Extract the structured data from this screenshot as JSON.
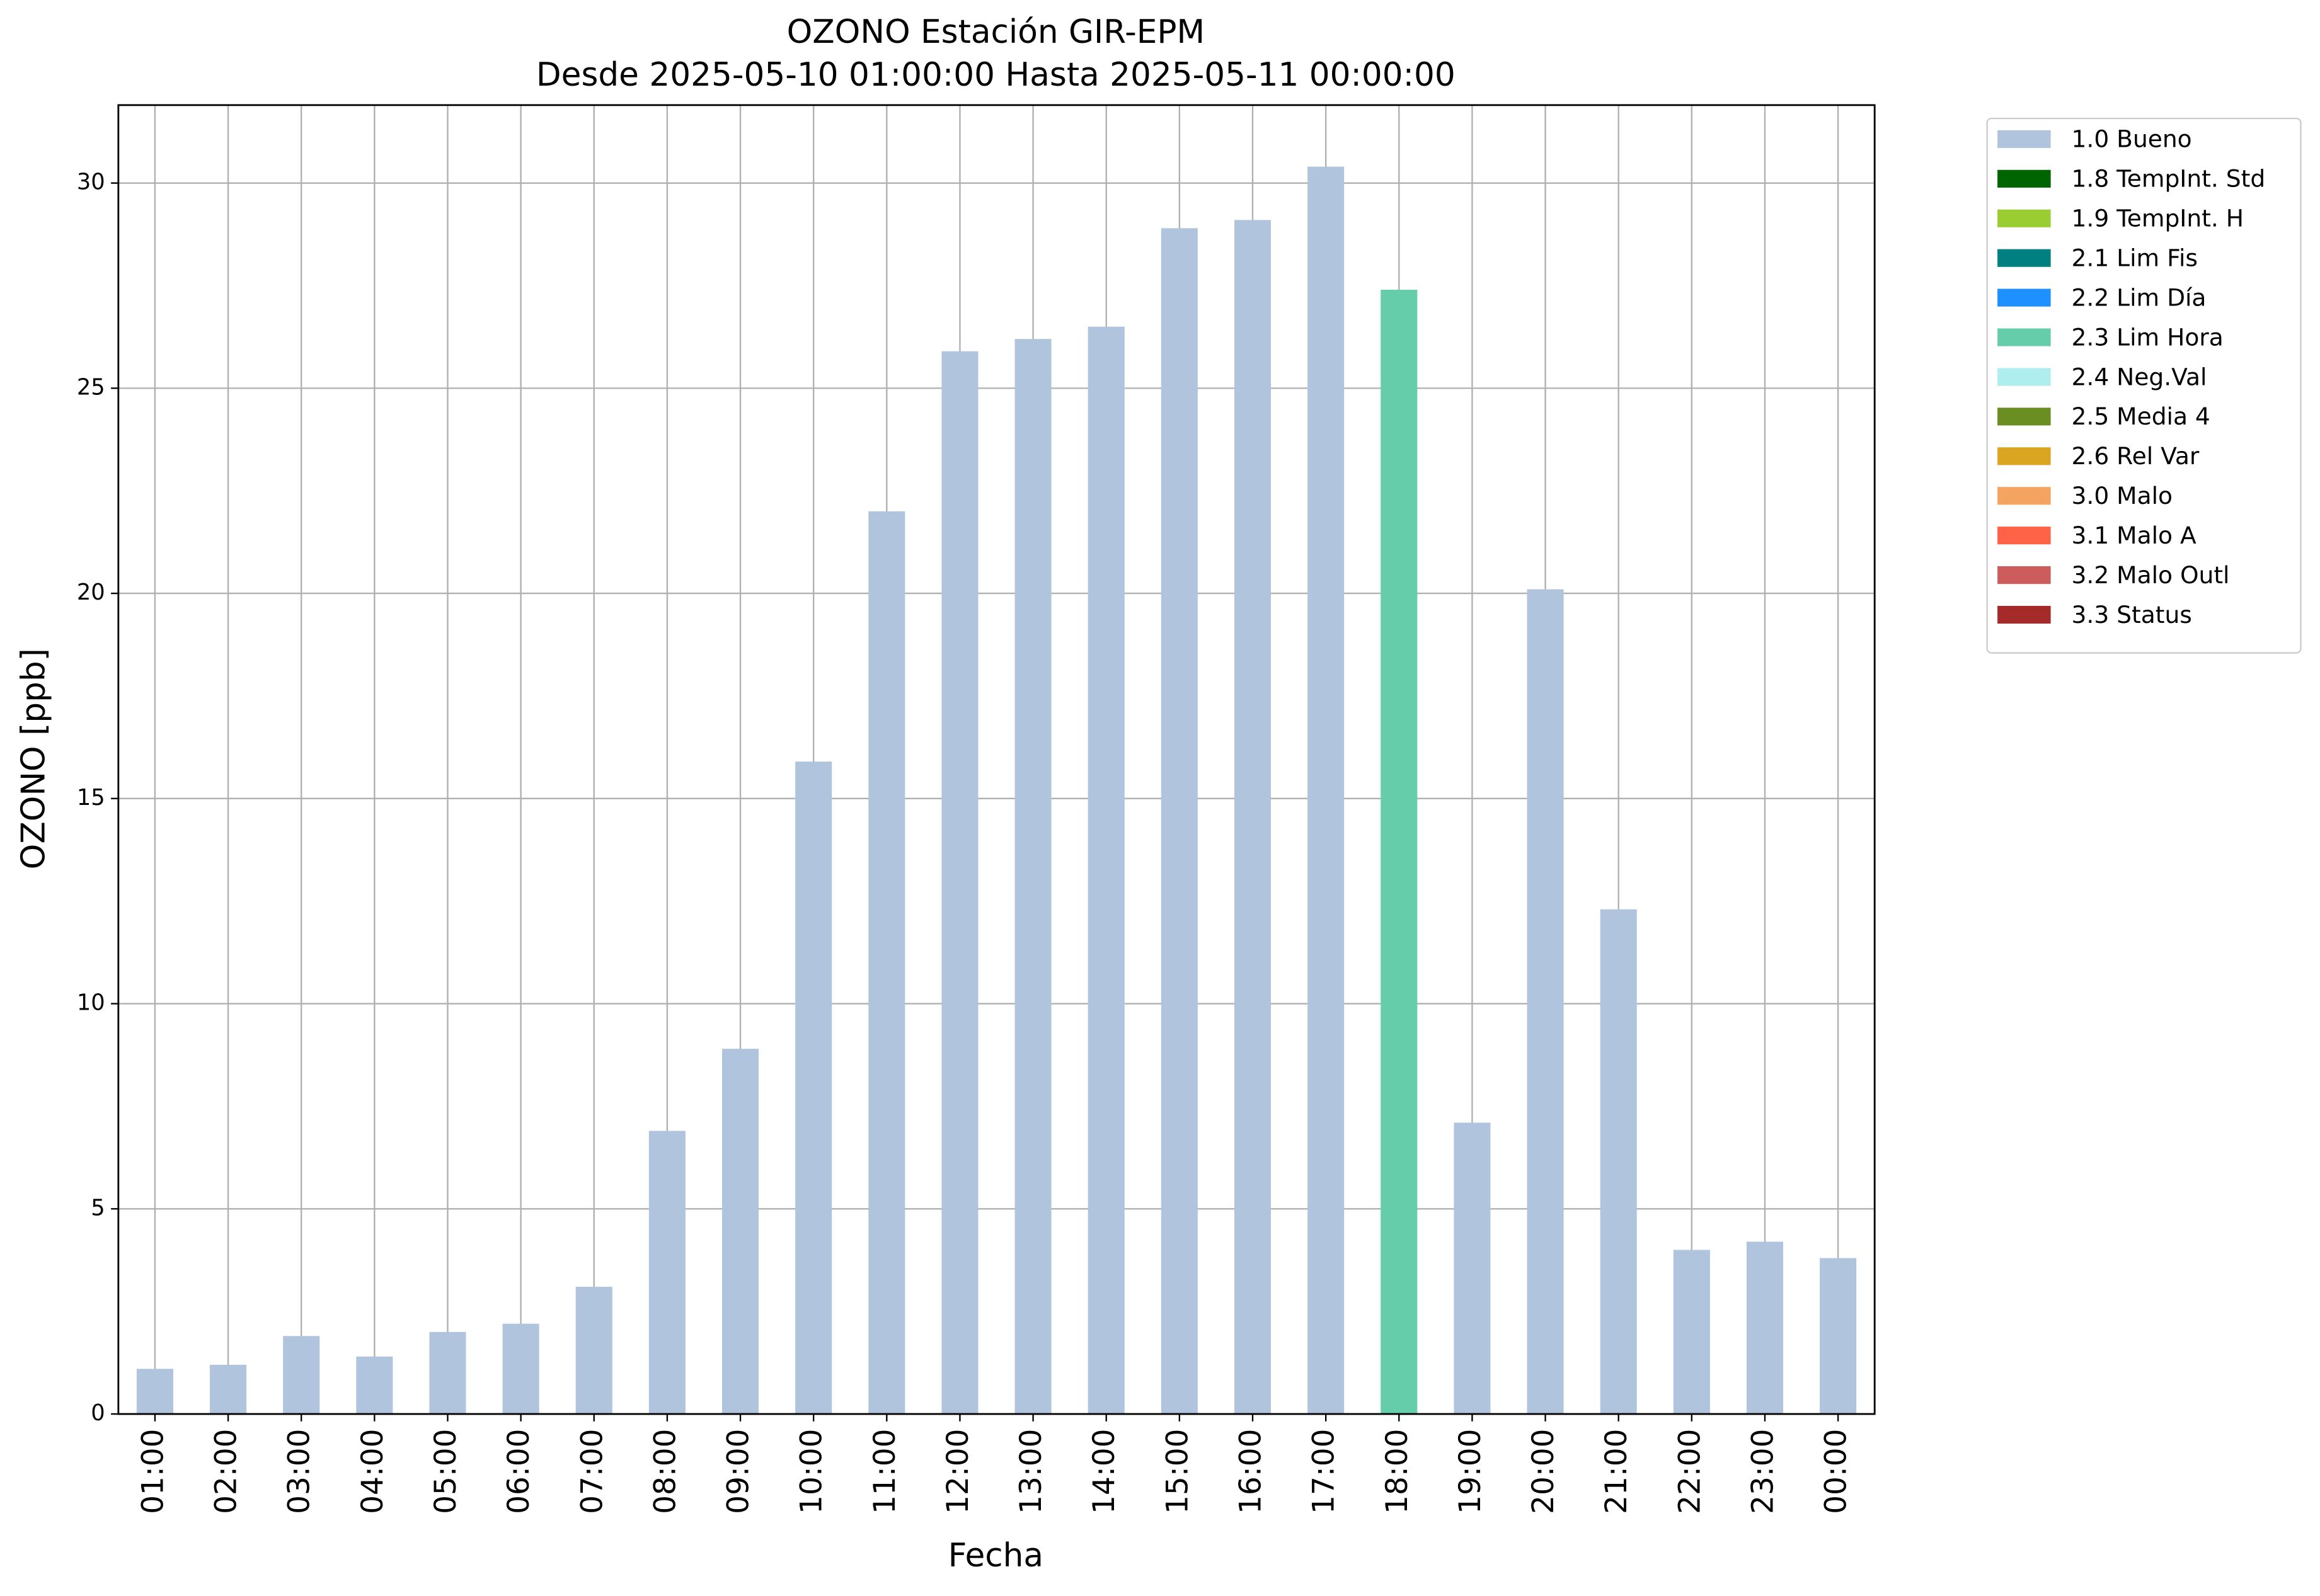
{
  "chart_data": {
    "type": "bar",
    "stacked": true,
    "title": "OZONO Estación GIR-EPM",
    "subtitle": "Desde 2025-05-10 01:00:00 Hasta 2025-05-11 00:00:00",
    "x_label": "Fecha",
    "y_label": "OZONO [ppb]",
    "categories": [
      "01:00",
      "02:00",
      "03:00",
      "04:00",
      "05:00",
      "06:00",
      "07:00",
      "08:00",
      "09:00",
      "10:00",
      "11:00",
      "12:00",
      "13:00",
      "14:00",
      "15:00",
      "16:00",
      "17:00",
      "18:00",
      "19:00",
      "20:00",
      "21:00",
      "22:00",
      "23:00",
      "00:00"
    ],
    "ylim": [
      0,
      31.9
    ],
    "yticks": [
      0,
      5,
      10,
      15,
      20,
      25,
      30
    ],
    "grid": true,
    "legend_position": "outside-right",
    "series": [
      {
        "name": "1.0 Bueno",
        "color": "#b0c4de",
        "values": [
          1.1,
          1.2,
          1.9,
          1.4,
          2.0,
          2.2,
          3.1,
          6.9,
          8.9,
          15.9,
          22.0,
          25.9,
          26.2,
          26.5,
          28.9,
          29.1,
          30.4,
          null,
          7.1,
          20.1,
          12.3,
          4.0,
          4.2,
          3.8
        ]
      },
      {
        "name": "1.8 TempInt. Std",
        "color": "#006400",
        "values": [
          null,
          null,
          null,
          null,
          null,
          null,
          null,
          null,
          null,
          null,
          null,
          null,
          null,
          null,
          null,
          null,
          null,
          null,
          null,
          null,
          null,
          null,
          null,
          null
        ]
      },
      {
        "name": "1.9 TempInt. H",
        "color": "#9acd32",
        "values": [
          null,
          null,
          null,
          null,
          null,
          null,
          null,
          null,
          null,
          null,
          null,
          null,
          null,
          null,
          null,
          null,
          null,
          null,
          null,
          null,
          null,
          null,
          null,
          null
        ]
      },
      {
        "name": "2.1 Lim Fis",
        "color": "#008080",
        "values": [
          null,
          null,
          null,
          null,
          null,
          null,
          null,
          null,
          null,
          null,
          null,
          null,
          null,
          null,
          null,
          null,
          null,
          null,
          null,
          null,
          null,
          null,
          null,
          null
        ]
      },
      {
        "name": "2.2 Lim Día",
        "color": "#1e90ff",
        "values": [
          null,
          null,
          null,
          null,
          null,
          null,
          null,
          null,
          null,
          null,
          null,
          null,
          null,
          null,
          null,
          null,
          null,
          null,
          null,
          null,
          null,
          null,
          null,
          null
        ]
      },
      {
        "name": "2.3 Lim Hora",
        "color": "#66cdaa",
        "values": [
          null,
          null,
          null,
          null,
          null,
          null,
          null,
          null,
          null,
          null,
          null,
          null,
          null,
          null,
          null,
          null,
          null,
          27.4,
          null,
          null,
          null,
          null,
          null,
          null
        ]
      },
      {
        "name": "2.4 Neg.Val",
        "color": "#afeeee",
        "values": [
          null,
          null,
          null,
          null,
          null,
          null,
          null,
          null,
          null,
          null,
          null,
          null,
          null,
          null,
          null,
          null,
          null,
          null,
          null,
          null,
          null,
          null,
          null,
          null
        ]
      },
      {
        "name": "2.5 Media 4",
        "color": "#6b8e23",
        "values": [
          null,
          null,
          null,
          null,
          null,
          null,
          null,
          null,
          null,
          null,
          null,
          null,
          null,
          null,
          null,
          null,
          null,
          null,
          null,
          null,
          null,
          null,
          null,
          null
        ]
      },
      {
        "name": "2.6 Rel Var",
        "color": "#daa520",
        "values": [
          null,
          null,
          null,
          null,
          null,
          null,
          null,
          null,
          null,
          null,
          null,
          null,
          null,
          null,
          null,
          null,
          null,
          null,
          null,
          null,
          null,
          null,
          null,
          null
        ]
      },
      {
        "name": "3.0 Malo",
        "color": "#f4a460",
        "values": [
          null,
          null,
          null,
          null,
          null,
          null,
          null,
          null,
          null,
          null,
          null,
          null,
          null,
          null,
          null,
          null,
          null,
          null,
          null,
          null,
          null,
          null,
          null,
          null
        ]
      },
      {
        "name": "3.1 Malo A",
        "color": "#ff6347",
        "values": [
          null,
          null,
          null,
          null,
          null,
          null,
          null,
          null,
          null,
          null,
          null,
          null,
          null,
          null,
          null,
          null,
          null,
          null,
          null,
          null,
          null,
          null,
          null,
          null
        ]
      },
      {
        "name": "3.2 Malo Outl",
        "color": "#cd5c5c",
        "values": [
          null,
          null,
          null,
          null,
          null,
          null,
          null,
          null,
          null,
          null,
          null,
          null,
          null,
          null,
          null,
          null,
          null,
          null,
          null,
          null,
          null,
          null,
          null,
          null
        ]
      },
      {
        "name": "3.3 Status",
        "color": "#a52a2a",
        "values": [
          null,
          null,
          null,
          null,
          null,
          null,
          null,
          null,
          null,
          null,
          null,
          null,
          null,
          null,
          null,
          null,
          null,
          null,
          null,
          null,
          null,
          null,
          null,
          null
        ]
      }
    ]
  }
}
